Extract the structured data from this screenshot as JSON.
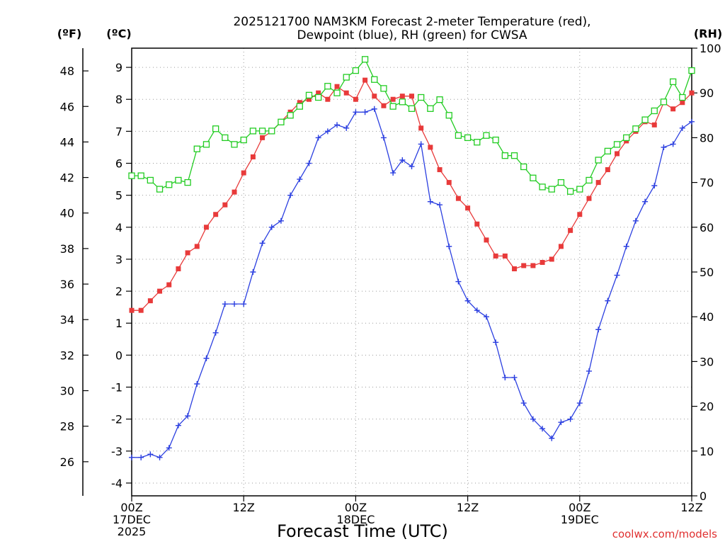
{
  "chart_data": {
    "type": "line",
    "title_line1": "2025121700 NAM3KM Forecast 2-meter Temperature (red),",
    "title_line2": "Dewpoint (blue), RH (green) for CWSA",
    "xlabel": "Forecast Time (UTC)",
    "credit": "coolwx.com/models",
    "units": {
      "fahrenheit": "(ºF)",
      "celsius": "(ºC)",
      "rh": "(RH)"
    },
    "x_range_hours": [
      0,
      60
    ],
    "celsius_range": [
      -4.4,
      9.6
    ],
    "rh_range": [
      0,
      100
    ],
    "x_ticks": [
      {
        "hour": 0,
        "lines": [
          "00Z",
          "17DEC",
          "2025"
        ]
      },
      {
        "hour": 12,
        "lines": [
          "12Z"
        ]
      },
      {
        "hour": 24,
        "lines": [
          "00Z",
          "18DEC"
        ]
      },
      {
        "hour": 36,
        "lines": [
          "12Z"
        ]
      },
      {
        "hour": 48,
        "lines": [
          "00Z",
          "19DEC"
        ]
      },
      {
        "hour": 60,
        "lines": [
          "12Z"
        ]
      }
    ],
    "celsius_ticks": [
      "-4",
      "-3",
      "-2",
      "-1",
      "0",
      "1",
      "2",
      "3",
      "4",
      "5",
      "6",
      "7",
      "8",
      "9"
    ],
    "fahrenheit_ticks": [
      "26",
      "28",
      "30",
      "32",
      "34",
      "36",
      "38",
      "40",
      "42",
      "44",
      "46",
      "48"
    ],
    "rh_ticks": [
      "0",
      "10",
      "20",
      "30",
      "40",
      "50",
      "60",
      "70",
      "80",
      "90",
      "100"
    ],
    "series": [
      {
        "name": "Temperature",
        "unit": "C",
        "color": "#e83a3a",
        "marker": "filled-square",
        "values": [
          1.4,
          1.4,
          1.7,
          2.0,
          2.2,
          2.7,
          3.2,
          3.4,
          4.0,
          4.4,
          4.7,
          5.1,
          5.7,
          6.2,
          6.8,
          7.0,
          7.3,
          7.6,
          7.9,
          8.0,
          8.2,
          8.0,
          8.4,
          8.2,
          8.0,
          8.6,
          8.1,
          7.8,
          8.0,
          8.1,
          8.1,
          7.1,
          6.5,
          5.8,
          5.4,
          4.9,
          4.6,
          4.1,
          3.6,
          3.1,
          3.1,
          2.7,
          2.8,
          2.8,
          2.9,
          3.0,
          3.4,
          3.9,
          4.4,
          4.9,
          5.4,
          5.8,
          6.3,
          6.7,
          7.0,
          7.3,
          7.2,
          7.9,
          7.7,
          7.9,
          8.2
        ]
      },
      {
        "name": "Dewpoint",
        "unit": "C",
        "color": "#2b3fe0",
        "marker": "plus",
        "values": [
          -3.2,
          -3.2,
          -3.1,
          -3.2,
          -2.9,
          -2.2,
          -1.9,
          -0.9,
          -0.1,
          0.7,
          1.6,
          1.6,
          1.6,
          2.6,
          3.5,
          4.0,
          4.2,
          5.0,
          5.5,
          6.0,
          6.8,
          7.0,
          7.2,
          7.1,
          7.6,
          7.6,
          7.7,
          6.8,
          5.7,
          6.1,
          5.9,
          6.6,
          4.8,
          4.7,
          3.4,
          2.3,
          1.7,
          1.4,
          1.2,
          0.4,
          -0.7,
          -0.7,
          -1.5,
          -2.0,
          -2.3,
          -2.6,
          -2.1,
          -2.0,
          -1.5,
          -0.5,
          0.8,
          1.7,
          2.5,
          3.4,
          4.2,
          4.8,
          5.3,
          6.5,
          6.6,
          7.1,
          7.3
        ]
      },
      {
        "name": "RH",
        "unit": "%",
        "color": "#22cc22",
        "marker": "open-square",
        "values": [
          71.5,
          71.5,
          70.5,
          68.5,
          69.5,
          70.5,
          70,
          77.5,
          78.5,
          82,
          80,
          78.5,
          79.5,
          81.5,
          81.5,
          81.5,
          83.5,
          85,
          87,
          89.5,
          89,
          91.5,
          90,
          93.5,
          95,
          97.5,
          93,
          91,
          87,
          88,
          86.5,
          89,
          86.5,
          88.5,
          85,
          80.5,
          80,
          79,
          80.5,
          79.5,
          76,
          76,
          73.5,
          71,
          69,
          68.5,
          70,
          68,
          68.5,
          70.5,
          75,
          77,
          78.5,
          80,
          82,
          84,
          86,
          88,
          92.5,
          89,
          95
        ]
      }
    ]
  }
}
